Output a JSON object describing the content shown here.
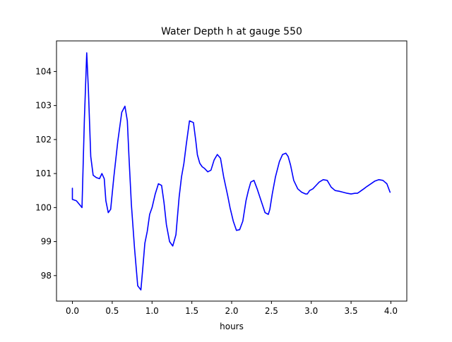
{
  "chart_data": {
    "type": "line",
    "title": "Water Depth h at gauge 550",
    "xlabel": "hours",
    "ylabel": "",
    "xlim": [
      -0.2,
      4.2
    ],
    "ylim": [
      97.25,
      104.9
    ],
    "grid": false,
    "x_ticks": [
      "0.0",
      "0.5",
      "1.0",
      "1.5",
      "2.0",
      "2.5",
      "3.0",
      "3.5",
      "4.0"
    ],
    "y_ticks": [
      "98",
      "99",
      "100",
      "101",
      "102",
      "103",
      "104"
    ],
    "series": [
      {
        "color": "#0000ff",
        "x": [
          0.0,
          0.0,
          0.05,
          0.1,
          0.12,
          0.15,
          0.18,
          0.2,
          0.23,
          0.26,
          0.3,
          0.34,
          0.37,
          0.4,
          0.42,
          0.45,
          0.48,
          0.52,
          0.57,
          0.62,
          0.66,
          0.69,
          0.71,
          0.74,
          0.78,
          0.82,
          0.86,
          0.88,
          0.91,
          0.94,
          0.97,
          1.0,
          1.04,
          1.08,
          1.12,
          1.15,
          1.18,
          1.22,
          1.26,
          1.3,
          1.34,
          1.37,
          1.4,
          1.43,
          1.47,
          1.52,
          1.55,
          1.57,
          1.6,
          1.63,
          1.66,
          1.7,
          1.74,
          1.78,
          1.82,
          1.86,
          1.9,
          1.95,
          1.98,
          2.02,
          2.06,
          2.1,
          2.14,
          2.18,
          2.21,
          2.24,
          2.28,
          2.32,
          2.37,
          2.42,
          2.46,
          2.48,
          2.51,
          2.55,
          2.6,
          2.64,
          2.68,
          2.71,
          2.74,
          2.78,
          2.83,
          2.88,
          2.93,
          2.95,
          2.98,
          3.02,
          3.06,
          3.1,
          3.15,
          3.2,
          3.25,
          3.3,
          3.35,
          3.4,
          3.45,
          3.5,
          3.55,
          3.58,
          3.6,
          3.63,
          3.66,
          3.7,
          3.75,
          3.8,
          3.85,
          3.9,
          3.95,
          3.99
        ],
        "y": [
          100.57,
          100.24,
          100.2,
          100.06,
          100.0,
          102.6,
          104.55,
          103.5,
          101.5,
          100.95,
          100.88,
          100.85,
          101.0,
          100.85,
          100.2,
          99.85,
          99.95,
          100.9,
          101.95,
          102.8,
          102.98,
          102.55,
          101.5,
          100.1,
          98.8,
          97.7,
          97.58,
          98.1,
          98.95,
          99.3,
          99.8,
          100.0,
          100.4,
          100.7,
          100.65,
          100.15,
          99.5,
          99.0,
          98.87,
          99.2,
          100.3,
          100.9,
          101.3,
          101.85,
          102.55,
          102.5,
          101.95,
          101.55,
          101.3,
          101.2,
          101.15,
          101.05,
          101.1,
          101.4,
          101.56,
          101.45,
          100.9,
          100.35,
          100.0,
          99.6,
          99.33,
          99.35,
          99.6,
          100.2,
          100.5,
          100.75,
          100.8,
          100.55,
          100.2,
          99.85,
          99.8,
          99.95,
          100.4,
          100.9,
          101.35,
          101.56,
          101.6,
          101.5,
          101.25,
          100.8,
          100.55,
          100.45,
          100.4,
          100.4,
          100.5,
          100.55,
          100.65,
          100.75,
          100.82,
          100.8,
          100.6,
          100.5,
          100.48,
          100.45,
          100.42,
          100.4,
          100.42,
          100.42,
          100.45,
          100.5,
          100.55,
          100.62,
          100.7,
          100.78,
          100.82,
          100.8,
          100.7,
          100.45
        ]
      }
    ]
  }
}
